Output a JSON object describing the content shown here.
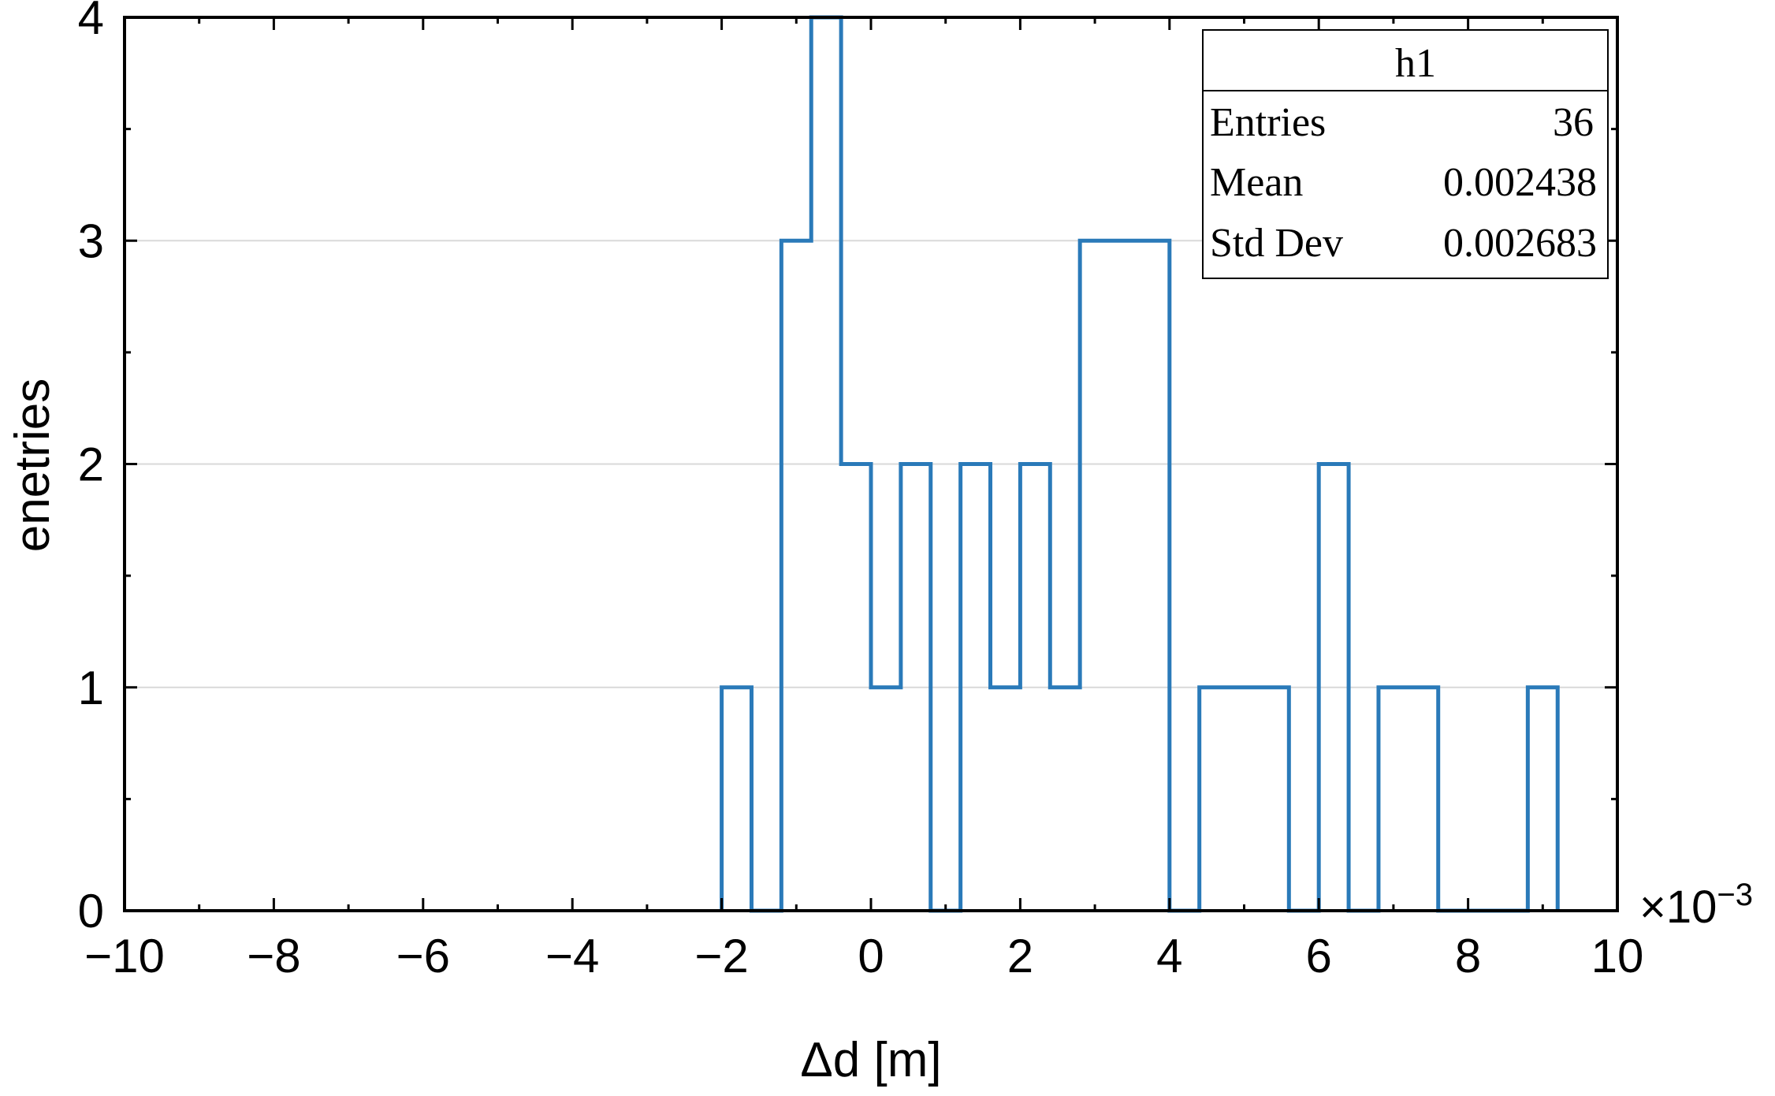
{
  "chart_data": {
    "type": "histogram",
    "title": "",
    "xlabel": "Δd [m]",
    "ylabel": "enetries",
    "x_multiplier_label": "×10",
    "x_multiplier_exponent": "−3",
    "xlim": [
      -10,
      10
    ],
    "ylim": [
      0,
      4
    ],
    "grid": "horizontal",
    "x_ticks": [
      -10,
      -8,
      -6,
      -4,
      -2,
      0,
      2,
      4,
      6,
      8,
      10
    ],
    "x_tick_labels": [
      "−10",
      "−8",
      "−6",
      "−4",
      "−2",
      "0",
      "2",
      "4",
      "6",
      "8",
      "10"
    ],
    "y_ticks": [
      0,
      1,
      2,
      3,
      4
    ],
    "y_tick_labels": [
      "0",
      "1",
      "2",
      "3",
      "4"
    ],
    "bin_edges": [
      -2.0,
      -1.6,
      -1.2,
      -0.8,
      -0.4,
      0.0,
      0.4,
      0.8,
      1.2,
      1.6,
      2.0,
      2.4,
      2.8,
      3.2,
      3.6,
      4.0,
      4.4,
      4.8,
      5.2,
      5.6,
      6.0,
      6.4,
      6.8,
      7.2,
      7.6,
      8.0,
      8.4,
      8.8,
      9.2
    ],
    "counts": [
      1,
      0,
      3,
      4,
      2,
      1,
      2,
      0,
      2,
      1,
      2,
      1,
      3,
      3,
      3,
      0,
      1,
      1,
      1,
      0,
      2,
      0,
      1,
      1,
      0,
      0,
      0,
      1
    ],
    "line_color": "#2a7ab9",
    "stats_box": {
      "title": "h1",
      "location": "top-right",
      "rows": [
        {
          "label": "Entries",
          "value": "36"
        },
        {
          "label": "Mean",
          "value": "0.002438"
        },
        {
          "label": "Std Dev",
          "value": "0.002683"
        }
      ]
    }
  }
}
